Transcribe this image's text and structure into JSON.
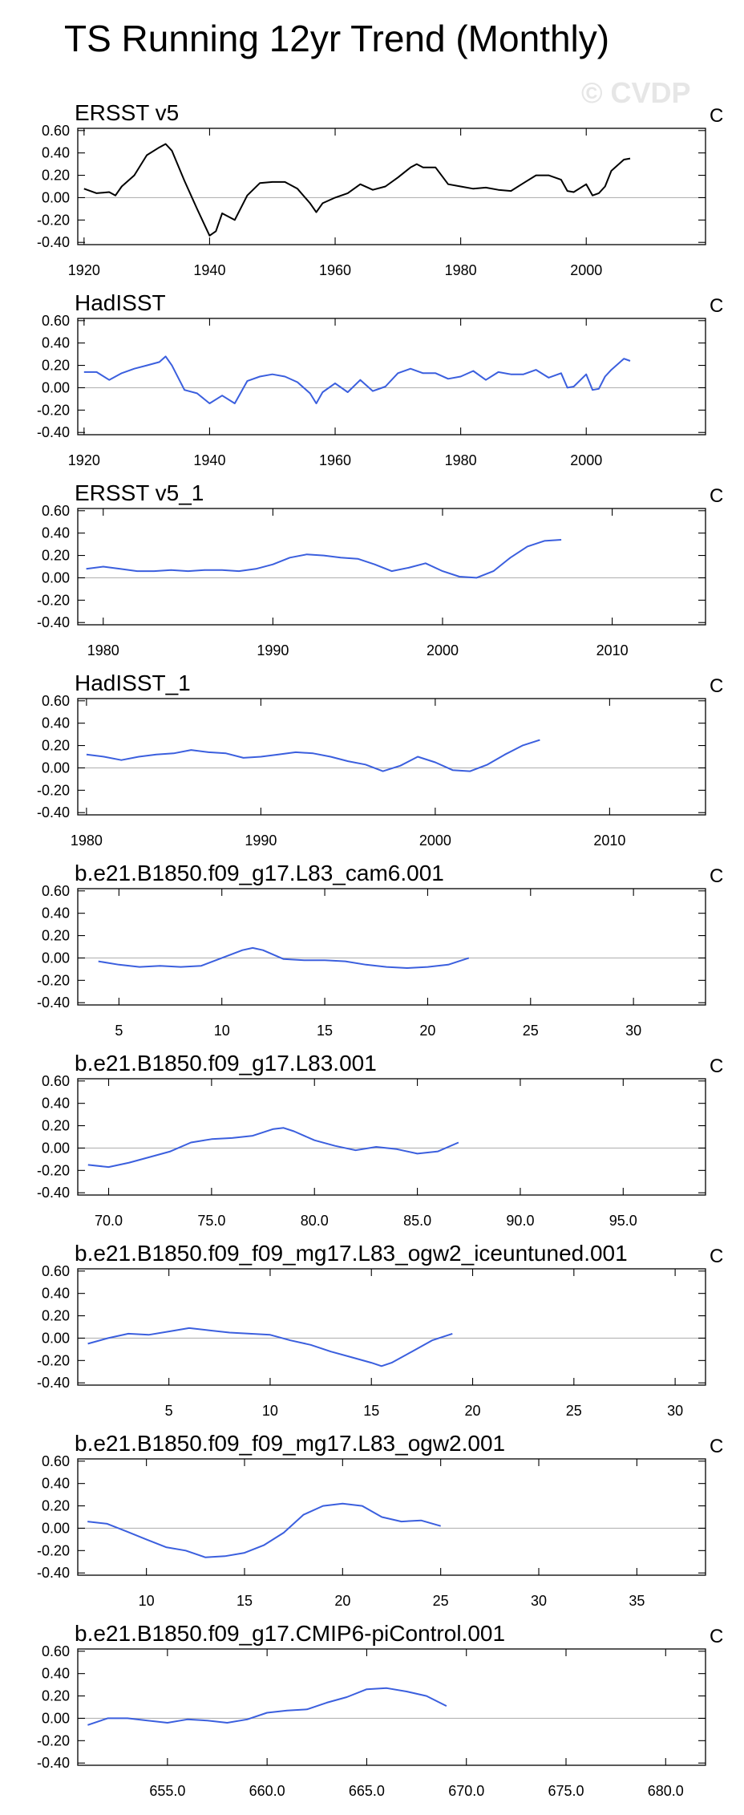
{
  "figure": {
    "title": "TS Running 12yr Trend (Monthly)",
    "watermark": "© CVDP",
    "units_label": "C",
    "colors": {
      "observations": "#000000",
      "models": "#3b5fde",
      "zero_line": "#b4b4b4"
    }
  },
  "chart_data": [
    {
      "type": "line",
      "title": "ERSST v5",
      "units": "C",
      "color": "#000000",
      "xlim": [
        1919,
        2019
      ],
      "ylim": [
        -0.42,
        0.62
      ],
      "xticks": [
        1920,
        1940,
        1960,
        1980,
        2000
      ],
      "xtick_labels": [
        "1920",
        "1940",
        "1960",
        "1980",
        "2000"
      ],
      "yticks": [
        -0.4,
        -0.2,
        0.0,
        0.2,
        0.4,
        0.6
      ],
      "ytick_labels": [
        "-0.40",
        "-0.20",
        "0.00",
        "0.20",
        "0.40",
        "0.60"
      ],
      "x": [
        1920,
        1922,
        1924,
        1925,
        1926,
        1928,
        1930,
        1932,
        1933,
        1934,
        1936,
        1938,
        1940,
        1941,
        1942,
        1944,
        1946,
        1948,
        1950,
        1952,
        1954,
        1956,
        1957,
        1958,
        1960,
        1962,
        1964,
        1966,
        1968,
        1970,
        1972,
        1973,
        1974,
        1976,
        1978,
        1980,
        1982,
        1984,
        1986,
        1988,
        1990,
        1992,
        1994,
        1996,
        1997,
        1998,
        2000,
        2001,
        2002,
        2003,
        2004,
        2006,
        2007
      ],
      "y": [
        0.08,
        0.04,
        0.05,
        0.02,
        0.1,
        0.2,
        0.38,
        0.45,
        0.48,
        0.42,
        0.15,
        -0.1,
        -0.34,
        -0.3,
        -0.14,
        -0.2,
        0.02,
        0.13,
        0.14,
        0.14,
        0.08,
        -0.05,
        -0.13,
        -0.05,
        0.0,
        0.04,
        0.12,
        0.07,
        0.1,
        0.18,
        0.27,
        0.3,
        0.27,
        0.27,
        0.12,
        0.1,
        0.08,
        0.09,
        0.07,
        0.06,
        0.13,
        0.2,
        0.2,
        0.16,
        0.06,
        0.05,
        0.12,
        0.02,
        0.04,
        0.1,
        0.24,
        0.34,
        0.35
      ]
    },
    {
      "type": "line",
      "title": "HadISST",
      "units": "C",
      "color": "#3b5fde",
      "xlim": [
        1919,
        2019
      ],
      "ylim": [
        -0.42,
        0.62
      ],
      "xticks": [
        1920,
        1940,
        1960,
        1980,
        2000
      ],
      "xtick_labels": [
        "1920",
        "1940",
        "1960",
        "1980",
        "2000"
      ],
      "yticks": [
        -0.4,
        -0.2,
        0.0,
        0.2,
        0.4,
        0.6
      ],
      "ytick_labels": [
        "-0.40",
        "-0.20",
        "0.00",
        "0.20",
        "0.40",
        "0.60"
      ],
      "x": [
        1920,
        1922,
        1924,
        1926,
        1928,
        1930,
        1932,
        1933,
        1934,
        1936,
        1938,
        1940,
        1942,
        1944,
        1946,
        1948,
        1950,
        1952,
        1954,
        1956,
        1957,
        1958,
        1960,
        1962,
        1964,
        1966,
        1968,
        1970,
        1972,
        1974,
        1976,
        1978,
        1980,
        1982,
        1984,
        1986,
        1988,
        1990,
        1992,
        1994,
        1996,
        1997,
        1998,
        2000,
        2001,
        2002,
        2003,
        2004,
        2006,
        2007
      ],
      "y": [
        0.14,
        0.14,
        0.07,
        0.13,
        0.17,
        0.2,
        0.23,
        0.28,
        0.2,
        -0.02,
        -0.05,
        -0.14,
        -0.07,
        -0.14,
        0.06,
        0.1,
        0.12,
        0.1,
        0.05,
        -0.05,
        -0.14,
        -0.04,
        0.04,
        -0.04,
        0.07,
        -0.03,
        0.01,
        0.13,
        0.17,
        0.13,
        0.13,
        0.08,
        0.1,
        0.15,
        0.07,
        0.14,
        0.12,
        0.12,
        0.16,
        0.09,
        0.13,
        0.0,
        0.01,
        0.12,
        -0.02,
        -0.01,
        0.1,
        0.16,
        0.26,
        0.24
      ]
    },
    {
      "type": "line",
      "title": "ERSST v5_1",
      "units": "C",
      "color": "#3b5fde",
      "xlim": [
        1978.5,
        2015.5
      ],
      "ylim": [
        -0.42,
        0.62
      ],
      "xticks": [
        1980,
        1990,
        2000,
        2010
      ],
      "xtick_labels": [
        "1980",
        "1990",
        "2000",
        "2010"
      ],
      "yticks": [
        -0.4,
        -0.2,
        0.0,
        0.2,
        0.4,
        0.6
      ],
      "ytick_labels": [
        "-0.40",
        "-0.20",
        "0.00",
        "0.20",
        "0.40",
        "0.60"
      ],
      "x": [
        1979,
        1980,
        1981,
        1982,
        1983,
        1984,
        1985,
        1986,
        1987,
        1988,
        1989,
        1990,
        1991,
        1992,
        1993,
        1994,
        1995,
        1996,
        1997,
        1998,
        1999,
        2000,
        2001,
        2002,
        2003,
        2004,
        2005,
        2006,
        2007
      ],
      "y": [
        0.08,
        0.1,
        0.08,
        0.06,
        0.06,
        0.07,
        0.06,
        0.07,
        0.07,
        0.06,
        0.08,
        0.12,
        0.18,
        0.21,
        0.2,
        0.18,
        0.17,
        0.12,
        0.06,
        0.09,
        0.13,
        0.06,
        0.01,
        0.0,
        0.06,
        0.18,
        0.28,
        0.33,
        0.34
      ]
    },
    {
      "type": "line",
      "title": "HadISST_1",
      "units": "C",
      "color": "#3b5fde",
      "xlim": [
        1979.5,
        2015.5
      ],
      "ylim": [
        -0.42,
        0.62
      ],
      "xticks": [
        1980,
        1990,
        2000,
        2010
      ],
      "xtick_labels": [
        "1980",
        "1990",
        "2000",
        "2010"
      ],
      "yticks": [
        -0.4,
        -0.2,
        0.0,
        0.2,
        0.4,
        0.6
      ],
      "ytick_labels": [
        "-0.40",
        "-0.20",
        "0.00",
        "0.20",
        "0.40",
        "0.60"
      ],
      "x": [
        1980,
        1981,
        1982,
        1983,
        1984,
        1985,
        1986,
        1987,
        1988,
        1989,
        1990,
        1991,
        1992,
        1993,
        1994,
        1995,
        1996,
        1997,
        1998,
        1999,
        2000,
        2001,
        2002,
        2003,
        2004,
        2005,
        2006
      ],
      "y": [
        0.12,
        0.1,
        0.07,
        0.1,
        0.12,
        0.13,
        0.16,
        0.14,
        0.13,
        0.09,
        0.1,
        0.12,
        0.14,
        0.13,
        0.1,
        0.06,
        0.03,
        -0.03,
        0.02,
        0.1,
        0.05,
        -0.02,
        -0.03,
        0.03,
        0.12,
        0.2,
        0.25
      ]
    },
    {
      "type": "line",
      "title": "b.e21.B1850.f09_g17.L83_cam6.001",
      "units": "C",
      "color": "#3b5fde",
      "xlim": [
        3,
        33.5
      ],
      "ylim": [
        -0.42,
        0.62
      ],
      "xticks": [
        5,
        10,
        15,
        20,
        25,
        30
      ],
      "xtick_labels": [
        "5",
        "10",
        "15",
        "20",
        "25",
        "30"
      ],
      "yticks": [
        -0.4,
        -0.2,
        0.0,
        0.2,
        0.4,
        0.6
      ],
      "ytick_labels": [
        "-0.40",
        "-0.20",
        "0.00",
        "0.20",
        "0.40",
        "0.60"
      ],
      "x": [
        4,
        5,
        6,
        7,
        8,
        9,
        10,
        11,
        11.5,
        12,
        13,
        14,
        15,
        16,
        17,
        18,
        19,
        20,
        21,
        22
      ],
      "y": [
        -0.03,
        -0.06,
        -0.08,
        -0.07,
        -0.08,
        -0.07,
        0.0,
        0.07,
        0.09,
        0.07,
        -0.01,
        -0.02,
        -0.02,
        -0.03,
        -0.06,
        -0.08,
        -0.09,
        -0.08,
        -0.06,
        0.0
      ]
    },
    {
      "type": "line",
      "title": "b.e21.B1850.f09_g17.L83.001",
      "units": "C",
      "color": "#3b5fde",
      "xlim": [
        68.5,
        99
      ],
      "ylim": [
        -0.42,
        0.62
      ],
      "xticks": [
        70,
        75,
        80,
        85,
        90,
        95
      ],
      "xtick_labels": [
        "70.0",
        "75.0",
        "80.0",
        "85.0",
        "90.0",
        "95.0"
      ],
      "yticks": [
        -0.4,
        -0.2,
        0.0,
        0.2,
        0.4,
        0.6
      ],
      "ytick_labels": [
        "-0.40",
        "-0.20",
        "0.00",
        "0.20",
        "0.40",
        "0.60"
      ],
      "x": [
        69,
        70,
        71,
        72,
        73,
        74,
        75,
        76,
        77,
        78,
        78.5,
        79,
        80,
        81,
        82,
        83,
        84,
        85,
        86,
        87
      ],
      "y": [
        -0.15,
        -0.17,
        -0.13,
        -0.08,
        -0.03,
        0.05,
        0.08,
        0.09,
        0.11,
        0.17,
        0.18,
        0.15,
        0.07,
        0.02,
        -0.02,
        0.01,
        -0.01,
        -0.05,
        -0.03,
        0.05
      ]
    },
    {
      "type": "line",
      "title": "b.e21.B1850.f09_f09_mg17.L83_ogw2_iceuntuned.001",
      "units": "C",
      "color": "#3b5fde",
      "xlim": [
        0.5,
        31.5
      ],
      "ylim": [
        -0.42,
        0.62
      ],
      "xticks": [
        5,
        10,
        15,
        20,
        25,
        30
      ],
      "xtick_labels": [
        "5",
        "10",
        "15",
        "20",
        "25",
        "30"
      ],
      "yticks": [
        -0.4,
        -0.2,
        0.0,
        0.2,
        0.4,
        0.6
      ],
      "ytick_labels": [
        "-0.40",
        "-0.20",
        "0.00",
        "0.20",
        "0.40",
        "0.60"
      ],
      "x": [
        1,
        2,
        3,
        4,
        5,
        6,
        7,
        8,
        9,
        10,
        11,
        12,
        13,
        14,
        15,
        15.5,
        16,
        17,
        18,
        19
      ],
      "y": [
        -0.05,
        0.0,
        0.04,
        0.03,
        0.06,
        0.09,
        0.07,
        0.05,
        0.04,
        0.03,
        -0.02,
        -0.06,
        -0.12,
        -0.17,
        -0.22,
        -0.25,
        -0.22,
        -0.12,
        -0.02,
        0.04
      ]
    },
    {
      "type": "line",
      "title": "b.e21.B1850.f09_f09_mg17.L83_ogw2.001",
      "units": "C",
      "color": "#3b5fde",
      "xlim": [
        6.5,
        38.5
      ],
      "ylim": [
        -0.42,
        0.62
      ],
      "xticks": [
        10,
        15,
        20,
        25,
        30,
        35
      ],
      "xtick_labels": [
        "10",
        "15",
        "20",
        "25",
        "30",
        "35"
      ],
      "yticks": [
        -0.4,
        -0.2,
        0.0,
        0.2,
        0.4,
        0.6
      ],
      "ytick_labels": [
        "-0.40",
        "-0.20",
        "0.00",
        "0.20",
        "0.40",
        "0.60"
      ],
      "x": [
        7,
        8,
        9,
        10,
        11,
        12,
        13,
        14,
        15,
        16,
        17,
        18,
        19,
        20,
        21,
        22,
        23,
        24,
        25
      ],
      "y": [
        0.06,
        0.04,
        -0.03,
        -0.1,
        -0.17,
        -0.2,
        -0.26,
        -0.25,
        -0.22,
        -0.15,
        -0.04,
        0.12,
        0.2,
        0.22,
        0.2,
        0.1,
        0.06,
        0.07,
        0.02
      ]
    },
    {
      "type": "line",
      "title": "b.e21.B1850.f09_g17.CMIP6-piControl.001",
      "units": "C",
      "color": "#3b5fde",
      "xlim": [
        650.5,
        682
      ],
      "ylim": [
        -0.42,
        0.62
      ],
      "xticks": [
        655,
        660,
        665,
        670,
        675,
        680
      ],
      "xtick_labels": [
        "655.0",
        "660.0",
        "665.0",
        "670.0",
        "675.0",
        "680.0"
      ],
      "yticks": [
        -0.4,
        -0.2,
        0.0,
        0.2,
        0.4,
        0.6
      ],
      "ytick_labels": [
        "-0.40",
        "-0.20",
        "0.00",
        "0.20",
        "0.40",
        "0.60"
      ],
      "x": [
        651,
        652,
        653,
        654,
        655,
        656,
        657,
        658,
        659,
        660,
        661,
        662,
        663,
        664,
        665,
        666,
        667,
        668,
        669
      ],
      "y": [
        -0.06,
        0.0,
        0.0,
        -0.02,
        -0.04,
        -0.01,
        -0.02,
        -0.04,
        -0.01,
        0.05,
        0.07,
        0.08,
        0.14,
        0.19,
        0.26,
        0.27,
        0.24,
        0.2,
        0.11
      ]
    }
  ]
}
